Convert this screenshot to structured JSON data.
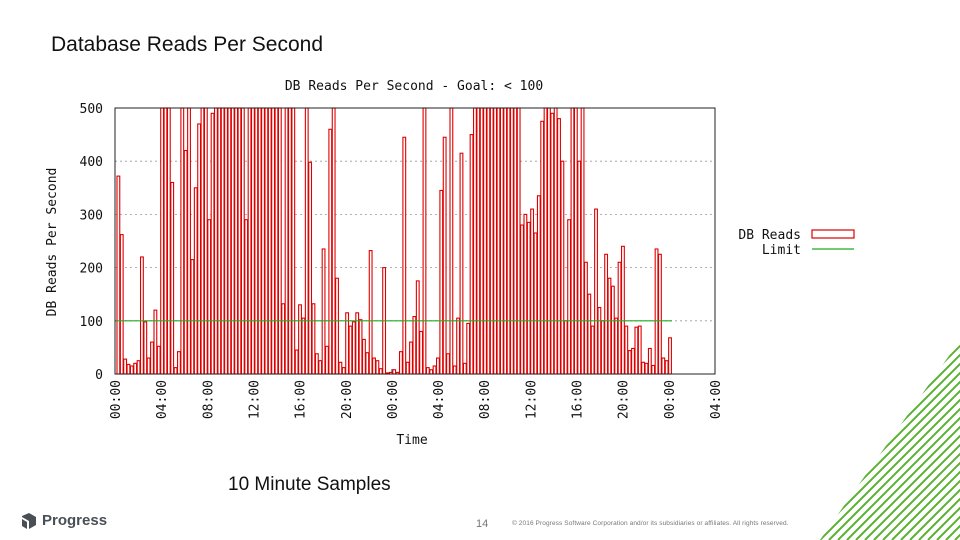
{
  "slide": {
    "title": "Database Reads Per Second",
    "caption": "10 Minute Samples",
    "page_number": "14",
    "copyright": "© 2016 Progress Software Corporation and/or its subsidiaries or affiliates. All rights reserved.",
    "logo_text": "Progress"
  },
  "colors": {
    "bars": "#dd0000",
    "limit": "#22aa22",
    "logo_green": "#5ab031"
  },
  "chart_data": {
    "type": "bar",
    "title": "DB Reads Per Second - Goal: < 100",
    "xlabel": "Time",
    "ylabel": "DB Reads Per Second",
    "ylim": [
      0,
      500
    ],
    "yticks": [
      0,
      100,
      200,
      300,
      400,
      500
    ],
    "xticks": [
      "00:00",
      "04:00",
      "08:00",
      "12:00",
      "16:00",
      "20:00",
      "00:00",
      "04:00",
      "08:00",
      "12:00",
      "16:00",
      "20:00",
      "00:00",
      "04:00"
    ],
    "grid": true,
    "legend": {
      "position": "right",
      "entries": [
        "DB Reads",
        "Limit"
      ]
    },
    "limit": 100,
    "series": [
      {
        "name": "DB Reads",
        "values": [
          372,
          262,
          28,
          18,
          15,
          20,
          25,
          220,
          98,
          30,
          60,
          120,
          52,
          500,
          500,
          500,
          360,
          12,
          42,
          500,
          420,
          500,
          215,
          350,
          470,
          500,
          500,
          290,
          490,
          500,
          500,
          500,
          500,
          500,
          500,
          500,
          500,
          500,
          290,
          500,
          500,
          500,
          500,
          500,
          500,
          500,
          500,
          500,
          500,
          132,
          500,
          500,
          500,
          45,
          130,
          105,
          500,
          398,
          132,
          38,
          25,
          235,
          52,
          460,
          500,
          180,
          22,
          12,
          115,
          90,
          98,
          115,
          102,
          65,
          40,
          232,
          30,
          25,
          10,
          200,
          2,
          3,
          8,
          3,
          42,
          445,
          22,
          60,
          108,
          175,
          80,
          500,
          12,
          8,
          15,
          30,
          345,
          445,
          38,
          500,
          15,
          105,
          415,
          20,
          95,
          450,
          500,
          500,
          500,
          500,
          500,
          500,
          500,
          500,
          500,
          500,
          500,
          500,
          500,
          500,
          280,
          300,
          285,
          310,
          265,
          335,
          475,
          500,
          510,
          490,
          500,
          480,
          400,
          100,
          290,
          500,
          500,
          400,
          500,
          210,
          150,
          90,
          310,
          125,
          100,
          225,
          180,
          165,
          105,
          210,
          240,
          90,
          44,
          48,
          88,
          90,
          22,
          20,
          48,
          16,
          235,
          225,
          30,
          25,
          68
        ]
      },
      {
        "name": "Limit",
        "values": [
          100
        ]
      }
    ]
  }
}
